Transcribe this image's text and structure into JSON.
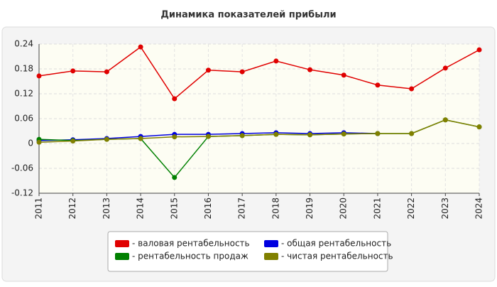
{
  "chart_data": {
    "type": "line",
    "title": "Динамика показателей прибыли",
    "x": [
      "2011",
      "2012",
      "2013",
      "2014",
      "2015",
      "2016",
      "2017",
      "2018",
      "2019",
      "2020",
      "2021",
      "2022",
      "2023",
      "2024"
    ],
    "ylim": [
      -0.12,
      0.24
    ],
    "yticks": [
      0.24,
      0.18,
      0.12,
      0.06,
      0,
      -0.06,
      -0.12
    ],
    "grid": true,
    "legend": "bottom",
    "series": [
      {
        "name": "- валовая рентабельность",
        "color": "#e00000",
        "values": [
          0.163,
          0.175,
          0.173,
          0.233,
          0.108,
          0.177,
          0.173,
          0.199,
          0.178,
          0.165,
          0.141,
          0.132,
          0.182,
          0.226
        ]
      },
      {
        "name": "- общая рентабельность",
        "color": "#0000e0",
        "values": [
          0.007,
          0.009,
          0.012,
          0.017,
          0.022,
          0.022,
          0.024,
          0.026,
          0.024,
          0.026,
          0.024,
          null,
          null,
          null
        ]
      },
      {
        "name": "- рентабельность продаж",
        "color": "#008000",
        "values": [
          0.01,
          0.007,
          0.01,
          0.012,
          -0.082,
          0.017,
          0.019,
          0.022,
          0.021,
          0.023,
          0.024,
          0.024,
          0.057,
          0.04
        ]
      },
      {
        "name": "- чистая рентабельность",
        "color": "#808000",
        "values": [
          0.003,
          0.006,
          0.01,
          0.012,
          0.016,
          0.017,
          0.019,
          0.022,
          0.021,
          0.023,
          0.024,
          0.024,
          0.057,
          0.04
        ]
      }
    ]
  }
}
